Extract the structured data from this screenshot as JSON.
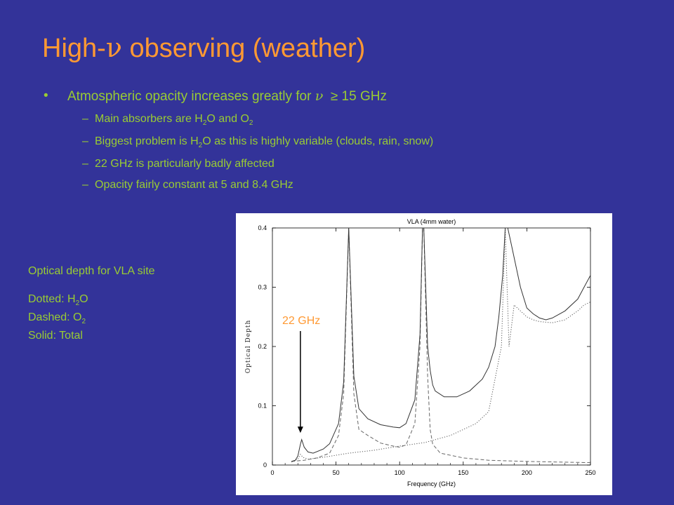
{
  "slide": {
    "title_prefix": "High-",
    "title_symbol": "ν",
    "title_suffix": " observing (weather)",
    "bullet": {
      "marker": "•",
      "text_before": "Atmospheric opacity increases greatly for ",
      "symbol": "ν",
      "relation": "≥",
      "text_after": " 15 GHz"
    },
    "subbullets": [
      {
        "parts": [
          "Main absorbers are H",
          "2",
          "O and O",
          "2"
        ]
      },
      {
        "parts": [
          "Biggest problem is H",
          "2",
          "O as this is highly variable (clouds, rain, snow)"
        ]
      },
      {
        "parts": [
          "22 GHz is particularly badly affected"
        ]
      },
      {
        "parts": [
          "Opacity fairly constant at 5 and 8.4 GHz"
        ]
      }
    ],
    "sub_marker": "–"
  },
  "legend": {
    "heading": "Optical depth for VLA site",
    "dotted": [
      "Dotted: H",
      "2",
      "O"
    ],
    "dashed": [
      "Dashed: O",
      "2"
    ],
    "solid": "Solid: Total"
  },
  "annotation": {
    "label": "22 GHz",
    "frequency": 22,
    "depth": 0.04
  },
  "chart_data": {
    "type": "line",
    "title": "VLA (4mm water)",
    "xlabel": "Frequency (GHz)",
    "ylabel": "Optical Depth",
    "xlim": [
      0,
      250
    ],
    "ylim": [
      0,
      0.4
    ],
    "xticks": [
      0,
      50,
      100,
      150,
      200,
      250
    ],
    "yticks": [
      0,
      0.1,
      0.2,
      0.3,
      0.4
    ],
    "xtick_labels": [
      "0",
      "50",
      "100",
      "150",
      "200",
      "250"
    ],
    "ytick_labels": [
      "0",
      "0.1",
      "0.2",
      "0.3",
      "0.4"
    ],
    "grid": false,
    "series": [
      {
        "style": "dotted",
        "x": [
          15,
          20,
          22,
          24,
          28,
          40,
          60,
          80,
          100,
          120,
          140,
          160,
          170,
          180,
          183,
          186,
          190,
          200,
          205,
          210,
          220,
          230,
          240,
          245,
          250
        ],
        "y": [
          0.005,
          0.01,
          0.018,
          0.013,
          0.01,
          0.013,
          0.02,
          0.025,
          0.032,
          0.038,
          0.05,
          0.07,
          0.09,
          0.2,
          0.4,
          0.2,
          0.27,
          0.25,
          0.245,
          0.242,
          0.24,
          0.245,
          0.26,
          0.27,
          0.275
        ]
      },
      {
        "style": "dashed",
        "x": [
          15,
          25,
          35,
          45,
          52,
          56,
          60,
          64,
          68,
          75,
          85,
          95,
          100,
          105,
          112,
          116,
          118,
          119,
          122,
          124,
          126,
          132,
          150,
          170,
          200,
          250
        ],
        "y": [
          0.006,
          0.008,
          0.012,
          0.02,
          0.05,
          0.12,
          0.4,
          0.12,
          0.06,
          0.05,
          0.037,
          0.032,
          0.03,
          0.034,
          0.07,
          0.2,
          0.4,
          0.4,
          0.15,
          0.06,
          0.035,
          0.02,
          0.012,
          0.008,
          0.006,
          0.004
        ]
      },
      {
        "style": "solid",
        "x": [
          15,
          18,
          20,
          22,
          23,
          25,
          28,
          32,
          40,
          45,
          52,
          56,
          60,
          64,
          68,
          75,
          85,
          95,
          100,
          105,
          112,
          116,
          118,
          119,
          122,
          124,
          126,
          128,
          135,
          145,
          155,
          165,
          170,
          175,
          178,
          181,
          183,
          185,
          188,
          192,
          195,
          200,
          205,
          210,
          215,
          220,
          230,
          240,
          245,
          250
        ],
        "y": [
          0.006,
          0.008,
          0.015,
          0.035,
          0.043,
          0.03,
          0.022,
          0.02,
          0.027,
          0.036,
          0.07,
          0.14,
          0.4,
          0.15,
          0.095,
          0.078,
          0.068,
          0.064,
          0.063,
          0.07,
          0.11,
          0.22,
          0.4,
          0.4,
          0.2,
          0.16,
          0.135,
          0.125,
          0.115,
          0.115,
          0.125,
          0.145,
          0.165,
          0.2,
          0.25,
          0.32,
          0.4,
          0.4,
          0.37,
          0.33,
          0.3,
          0.265,
          0.255,
          0.248,
          0.245,
          0.248,
          0.26,
          0.28,
          0.3,
          0.32
        ]
      }
    ]
  }
}
